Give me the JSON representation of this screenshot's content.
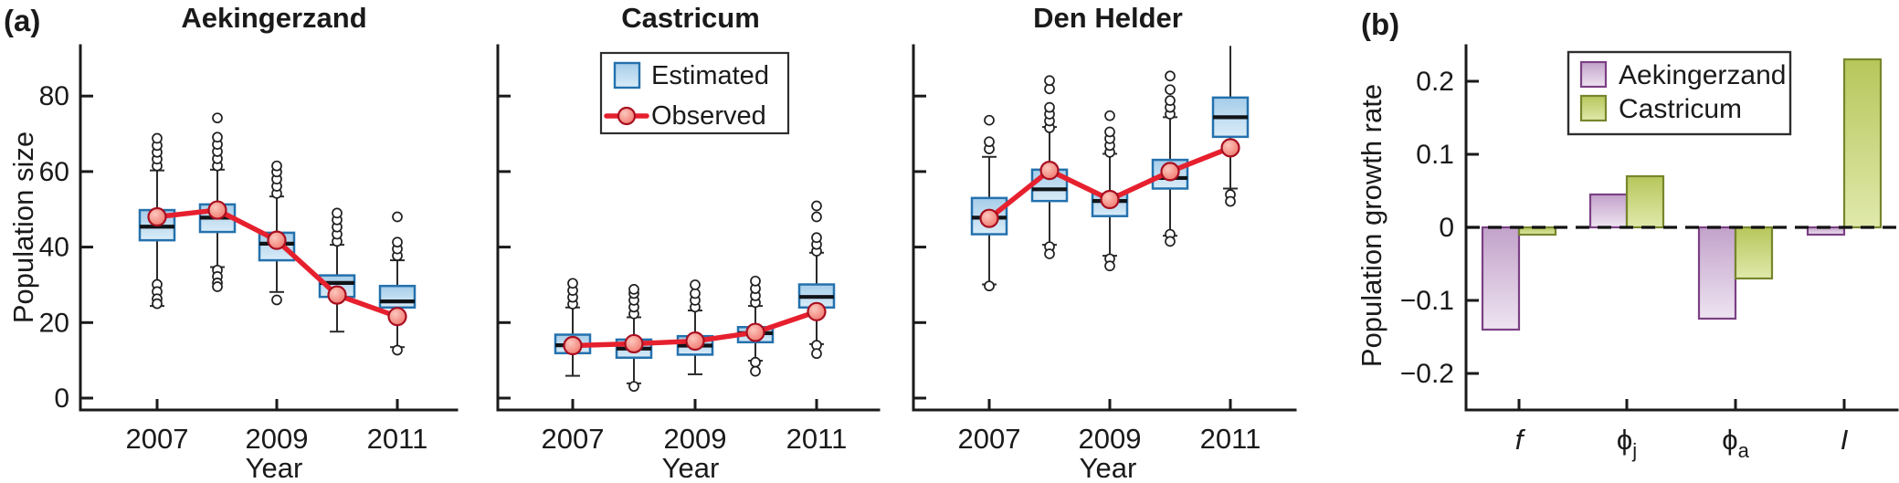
{
  "figure": {
    "panel_a_label": "(a)",
    "panel_b_label": "(b)",
    "background": "#ffffff"
  },
  "colors": {
    "box_fill_top": "#a6cde9",
    "box_fill_bottom": "#d9ecf8",
    "box_border": "#2471ad",
    "median": "#101418",
    "whisker": "#2b2b2b",
    "outlier_stroke": "#1f1f1f",
    "observed_line": "#e6202e",
    "observed_stroke": "#a80f20",
    "observed_fill": "#ef6d64",
    "observed_fill_light": "#fcc7bd",
    "aek_fill_top": "#c2a2ca",
    "aek_fill_bottom": "#eee4f1",
    "aek_border": "#7b4084",
    "cas_fill_top": "#b7c65b",
    "cas_fill_bottom": "#e0e9ab",
    "cas_border": "#76862c",
    "axis": "#1a1a1a",
    "text": "#1a1a1a",
    "legend_border": "#2e2e2e"
  },
  "chart_data": [
    {
      "type": "box-line",
      "title": "Aekingerzand",
      "xlabel": "Year",
      "ylabel": "Population size",
      "ylim": [
        0,
        93
      ],
      "yticks": [
        0,
        20,
        40,
        60,
        80
      ],
      "ytick_labels_visible": true,
      "years": [
        2007,
        2008,
        2009,
        2010,
        2011
      ],
      "xtick_labels": [
        "2007",
        "2009",
        "2011"
      ],
      "xtick_years": [
        2007,
        2009,
        2011
      ],
      "boxes": [
        {
          "year": 2007,
          "whisker_low": 24.4,
          "q1": 41.8,
          "median": 45.4,
          "q3": 49.8,
          "whisker_high": 60.3,
          "outliers_above": [
            61.5,
            63.3,
            65.1,
            66.9,
            68.8
          ],
          "outliers_below": [
            30.1,
            28.2,
            26.3,
            25.0
          ]
        },
        {
          "year": 2008,
          "whisker_low": 34.7,
          "q1": 44.0,
          "median": 47.8,
          "q3": 51.3,
          "whisker_high": 60.5,
          "outliers_above": [
            61.5,
            63.4,
            65.3,
            67.2,
            69.1,
            74.2
          ],
          "outliers_below": [
            33.9,
            32.2,
            30.5,
            29.5
          ]
        },
        {
          "year": 2009,
          "whisker_low": 28.1,
          "q1": 36.5,
          "median": 40.9,
          "q3": 43.8,
          "whisker_high": 53.4,
          "outliers_above": [
            54.2,
            56.1,
            58.0,
            59.9,
            61.5
          ],
          "outliers_below": [
            26.0
          ]
        },
        {
          "year": 2010,
          "whisker_low": 17.6,
          "q1": 26.8,
          "median": 30.5,
          "q3": 32.5,
          "whisker_high": 40.6,
          "outliers_above": [
            41.5,
            43.4,
            45.3,
            47.2,
            49.0
          ],
          "outliers_below": []
        },
        {
          "year": 2011,
          "whisker_low": 13.5,
          "q1": 24.0,
          "median": 25.6,
          "q3": 29.7,
          "whisker_high": 36.5,
          "outliers_above": [
            37.7,
            39.5,
            41.3,
            48.0
          ],
          "outliers_below": [
            12.7
          ]
        }
      ],
      "observed": [
        48.0,
        49.8,
        41.8,
        27.3,
        21.6
      ],
      "legend": null
    },
    {
      "type": "box-line",
      "title": "Castricum",
      "xlabel": "Year",
      "ylabel": "",
      "ylim": [
        0,
        93
      ],
      "yticks": [
        0,
        20,
        40,
        60,
        80
      ],
      "ytick_labels_visible": false,
      "years": [
        2007,
        2008,
        2009,
        2010,
        2011
      ],
      "xtick_labels": [
        "2007",
        "2009",
        "2011"
      ],
      "xtick_years": [
        2007,
        2009,
        2011
      ],
      "boxes": [
        {
          "year": 2007,
          "whisker_low": 5.9,
          "q1": 11.9,
          "median": 14.0,
          "q3": 16.8,
          "whisker_high": 24.0,
          "outliers_above": [
            24.9,
            26.7,
            28.5,
            30.4
          ],
          "outliers_below": []
        },
        {
          "year": 2008,
          "whisker_low": 3.9,
          "q1": 10.7,
          "median": 13.1,
          "q3": 15.5,
          "whisker_high": 21.4,
          "outliers_above": [
            22.3,
            24.1,
            25.9,
            27.7,
            28.8
          ],
          "outliers_below": [
            3.1
          ]
        },
        {
          "year": 2009,
          "whisker_low": 6.3,
          "q1": 11.5,
          "median": 13.9,
          "q3": 16.4,
          "whisker_high": 23.2,
          "outliers_above": [
            24.1,
            25.9,
            27.7,
            30.0
          ],
          "outliers_below": []
        },
        {
          "year": 2010,
          "whisker_low": 9.9,
          "q1": 14.8,
          "median": 17.2,
          "q3": 18.8,
          "whisker_high": 24.4,
          "outliers_above": [
            25.3,
            27.1,
            29.0,
            31.0
          ],
          "outliers_below": [
            9.5,
            7.1
          ]
        },
        {
          "year": 2011,
          "whisker_low": 14.3,
          "q1": 24.0,
          "median": 26.8,
          "q3": 30.1,
          "whisker_high": 38.5,
          "outliers_above": [
            38.9,
            40.7,
            42.5,
            48.0,
            50.9
          ],
          "outliers_below": [
            14.0,
            11.8
          ]
        }
      ],
      "observed": [
        13.9,
        14.4,
        15.1,
        17.4,
        22.9
      ],
      "legend": {
        "items": [
          {
            "symbol": "box",
            "label": "Estimated"
          },
          {
            "symbol": "point",
            "label": "Observed"
          }
        ]
      }
    },
    {
      "type": "box-line",
      "title": "Den Helder",
      "xlabel": "Year",
      "ylabel": "",
      "ylim": [
        0,
        93
      ],
      "yticks": [
        0,
        20,
        40,
        60,
        80
      ],
      "ytick_labels_visible": false,
      "years": [
        2007,
        2008,
        2009,
        2010,
        2011
      ],
      "xtick_labels": [
        "2007",
        "2009",
        "2011"
      ],
      "xtick_years": [
        2007,
        2009,
        2011
      ],
      "boxes": [
        {
          "year": 2007,
          "whisker_low": 30.1,
          "q1": 43.4,
          "median": 47.8,
          "q3": 53.0,
          "whisker_high": 63.9,
          "outliers_above": [
            66.0,
            67.9,
            73.6
          ],
          "outliers_below": [
            29.7
          ]
        },
        {
          "year": 2008,
          "whisker_low": 40.6,
          "q1": 52.2,
          "median": 55.3,
          "q3": 60.5,
          "whisker_high": 71.8,
          "outliers_above": [
            71.6,
            73.4,
            75.2,
            77.0,
            81.9,
            84.1
          ],
          "outliers_below": [
            40.1,
            38.2
          ]
        },
        {
          "year": 2009,
          "whisker_low": 37.7,
          "q1": 48.2,
          "median": 52.2,
          "q3": 54.1,
          "whisker_high": 64.7,
          "outliers_above": [
            65.1,
            66.9,
            68.7,
            70.5,
            74.8
          ],
          "outliers_below": [
            36.9,
            35.0
          ]
        },
        {
          "year": 2010,
          "whisker_low": 43.0,
          "q1": 55.5,
          "median": 58.3,
          "q3": 63.1,
          "whisker_high": 74.4,
          "outliers_above": [
            75.2,
            77.0,
            78.8,
            81.7,
            85.3
          ],
          "outliers_below": [
            43.4,
            41.5
          ]
        },
        {
          "year": 2011,
          "whisker_low": 55.5,
          "q1": 69.2,
          "median": 74.4,
          "q3": 79.6,
          "whisker_high": 93.3,
          "outliers_above": [],
          "outliers_below": [
            53.9,
            52.1
          ]
        }
      ],
      "observed": [
        47.6,
        60.3,
        52.6,
        60.0,
        66.3
      ],
      "legend": null
    },
    {
      "type": "bar",
      "title": "",
      "xlabel": "",
      "ylabel": "Population growth rate",
      "ylim": [
        -0.25,
        0.25
      ],
      "yticks": [
        -0.2,
        -0.1,
        0,
        0.1,
        0.2
      ],
      "categories": [
        {
          "base": "f",
          "sub": "",
          "italic": true
        },
        {
          "base": "ϕ",
          "sub": "j",
          "italic": false
        },
        {
          "base": "ϕ",
          "sub": "a",
          "italic": false
        },
        {
          "base": "I",
          "sub": "",
          "italic": true
        }
      ],
      "series": [
        {
          "name": "Aekingerzand",
          "values": [
            -0.14,
            0.045,
            -0.125,
            -0.01
          ]
        },
        {
          "name": "Castricum",
          "values": [
            -0.01,
            0.07,
            -0.07,
            0.23
          ]
        }
      ],
      "zero_line": "dashed",
      "legend_position": "top",
      "grid": false
    }
  ]
}
